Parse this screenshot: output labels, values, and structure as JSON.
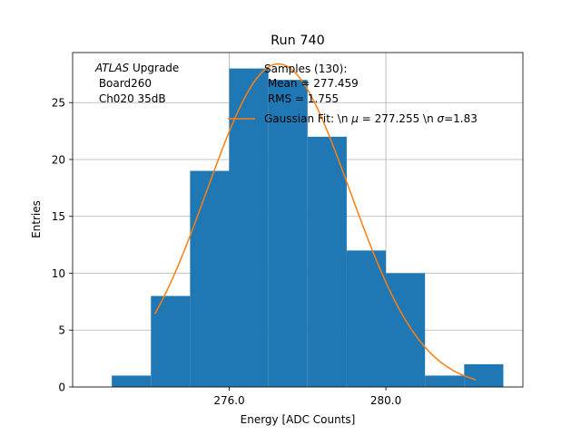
{
  "chart_data": {
    "type": "bar",
    "title": "Run 740",
    "xlabel": "Energy [ADC Counts]",
    "ylabel": "Entries",
    "xlim": [
      272.0,
      283.5
    ],
    "ylim": [
      0,
      29.4
    ],
    "x_ticks": [
      276.0,
      280.0
    ],
    "x_tick_labels": [
      "276.0",
      "280.0"
    ],
    "y_ticks": [
      0,
      5,
      10,
      15,
      20,
      25
    ],
    "y_tick_labels": [
      "0",
      "5",
      "10",
      "15",
      "20",
      "25"
    ],
    "grid": true,
    "bin_edges": [
      273.0,
      274.0,
      275.0,
      276.0,
      277.0,
      278.0,
      279.0,
      280.0,
      281.0,
      282.0,
      283.0
    ],
    "counts": [
      1,
      8,
      19,
      28,
      27,
      22,
      12,
      10,
      1,
      2
    ],
    "colors": {
      "bars": "#1f77b4",
      "fit": "#ff7f0e",
      "grid": "#b0b0b0"
    },
    "fit": {
      "amplitude": 28.4,
      "mu": 277.255,
      "sigma": 1.83,
      "x_range": [
        274.1,
        282.3
      ]
    },
    "annotation": {
      "line1_italic": "ATLAS",
      "line1_rest": " Upgrade",
      "line2": " Board260",
      "line3": " Ch020 35dB"
    },
    "legend": {
      "placement": "top-right",
      "samples_line1": "Samples (130):",
      "samples_line2": " Mean = 277.459",
      "samples_line3": " RMS = 1.755",
      "fit_prefix": "Gaussian Fit: \\n ",
      "fit_mu_symbol": "μ",
      "fit_mid": " = 277.255 \\n ",
      "fit_sigma_symbol": "σ",
      "fit_suffix": "=1.83"
    }
  }
}
